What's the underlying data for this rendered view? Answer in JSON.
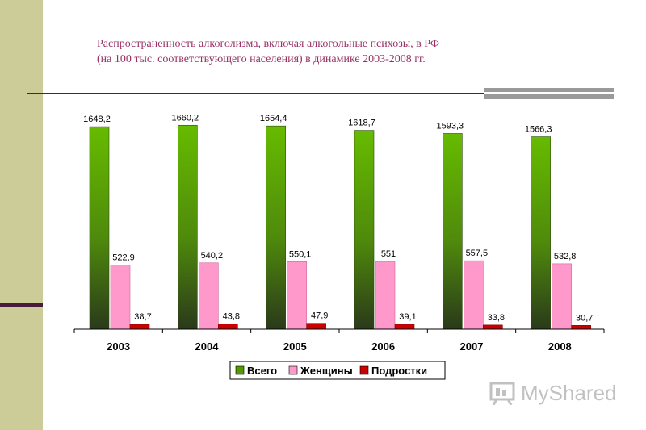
{
  "title_lines": [
    "Распространенность алкоголизма, включая алкогольные психозы, в РФ",
    "(на 100 тыс. соответствующего населения) в динамике 2003-2008 гг."
  ],
  "logo_text": "MyShared",
  "colors": {
    "band": "#cccc99",
    "title": "#993366",
    "series": [
      "#559900",
      "#ff99cc",
      "#cc0000"
    ]
  },
  "chart_data": {
    "type": "bar",
    "title": "Распространенность алкоголизма, включая алкогольные психозы, в РФ (на 100 тыс. соответствующего населения) в динамике 2003-2008 гг.",
    "categories": [
      "2003",
      "2004",
      "2005",
      "2006",
      "2007",
      "2008"
    ],
    "series": [
      {
        "name": "Всего",
        "values": [
          1648.2,
          1660.2,
          1654.4,
          1618.7,
          1593.3,
          1566.3
        ],
        "labels": [
          "1648,2",
          "1660,2",
          "1654,4",
          "1618,7",
          "1593,3",
          "1566,3"
        ]
      },
      {
        "name": "Женщины",
        "values": [
          522.9,
          540.2,
          550.1,
          551,
          557.5,
          532.8
        ],
        "labels": [
          "522,9",
          "540,2",
          "550,1",
          "551",
          "557,5",
          "532,8"
        ]
      },
      {
        "name": "Подростки",
        "values": [
          38.7,
          43.8,
          47.9,
          39.1,
          33.8,
          30.7
        ],
        "labels": [
          "38,7",
          "43,8",
          "47,9",
          "39,1",
          "33,8",
          "30,7"
        ]
      }
    ],
    "ylim": [
      0,
      1800
    ],
    "legend": "bottom",
    "grid": false
  }
}
